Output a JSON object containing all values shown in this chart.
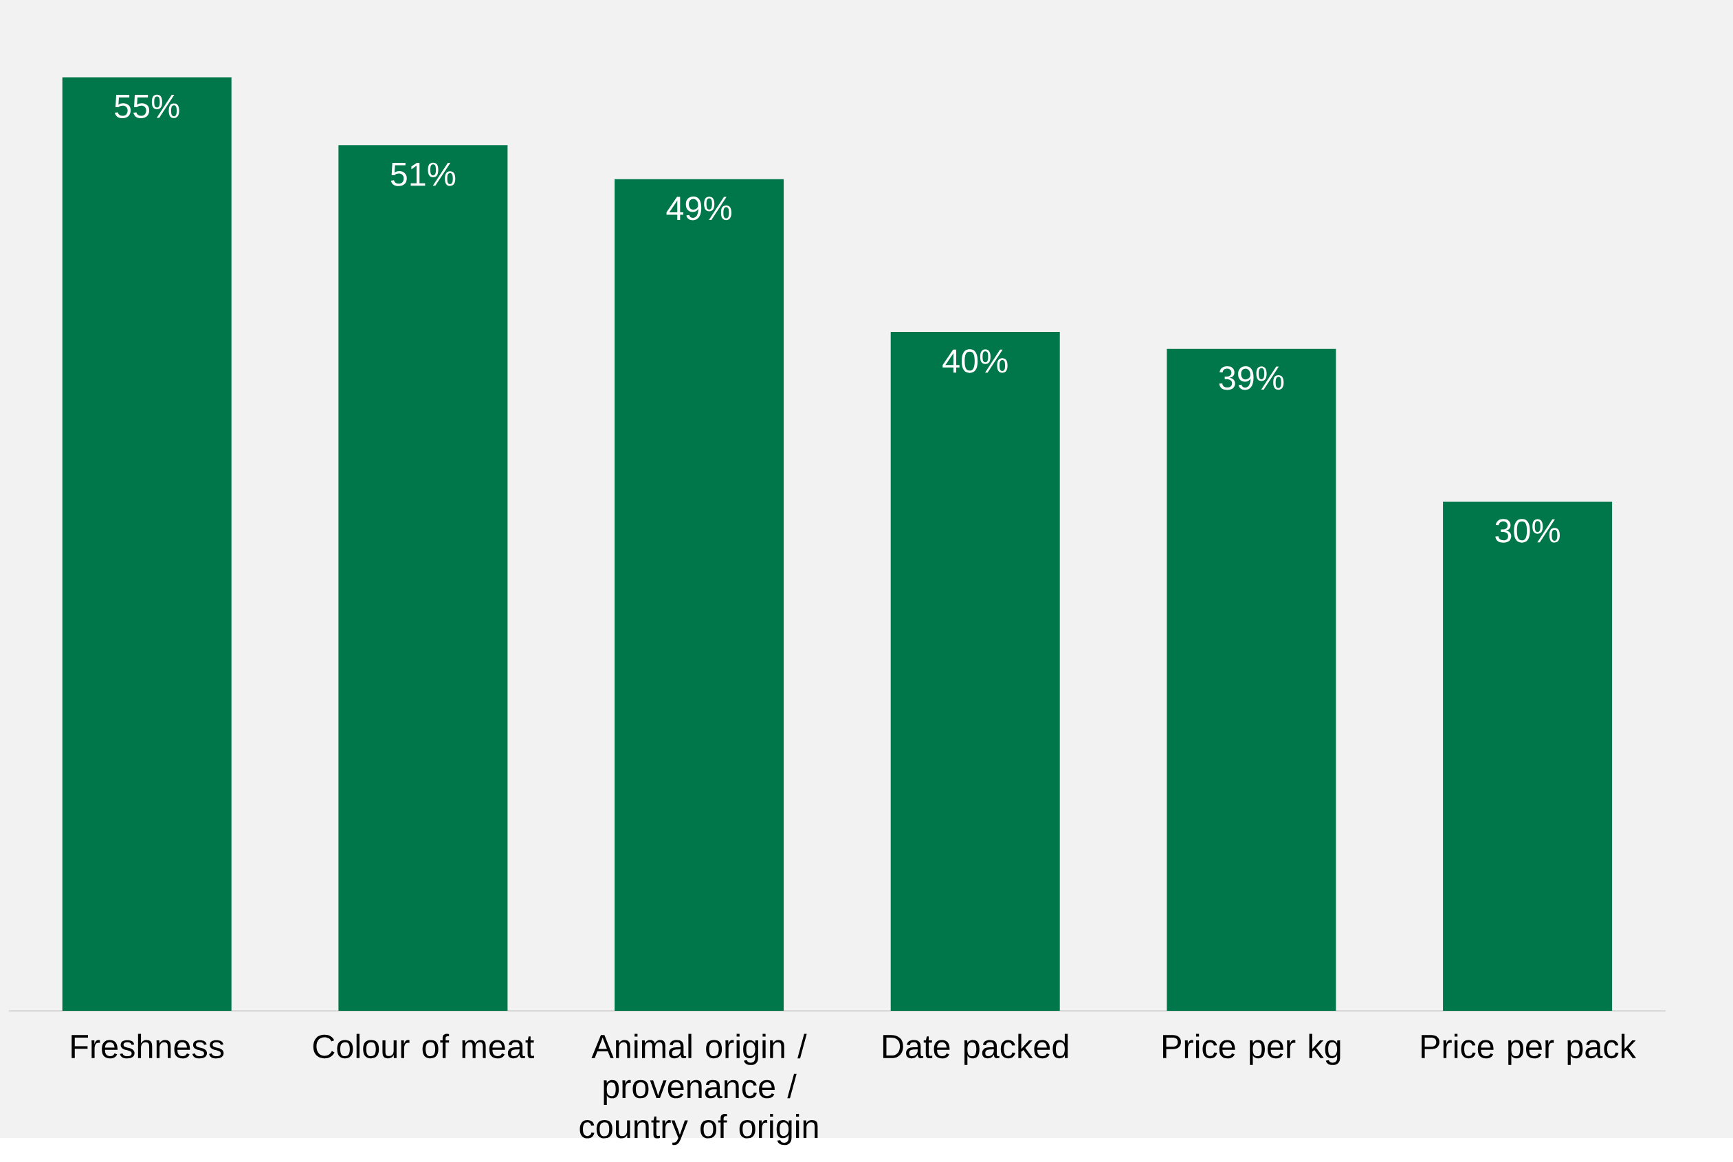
{
  "chart_data": {
    "type": "bar",
    "categories": [
      "Freshness",
      "Colour of meat",
      "Animal origin / provenance / country of origin",
      "Date packed",
      "Price per kg",
      "Price per pack"
    ],
    "values": [
      55,
      51,
      49,
      40,
      39,
      30
    ],
    "value_labels": [
      "55%",
      "51%",
      "49%",
      "40%",
      "39%",
      "30%"
    ],
    "color": "#00774a"
  }
}
